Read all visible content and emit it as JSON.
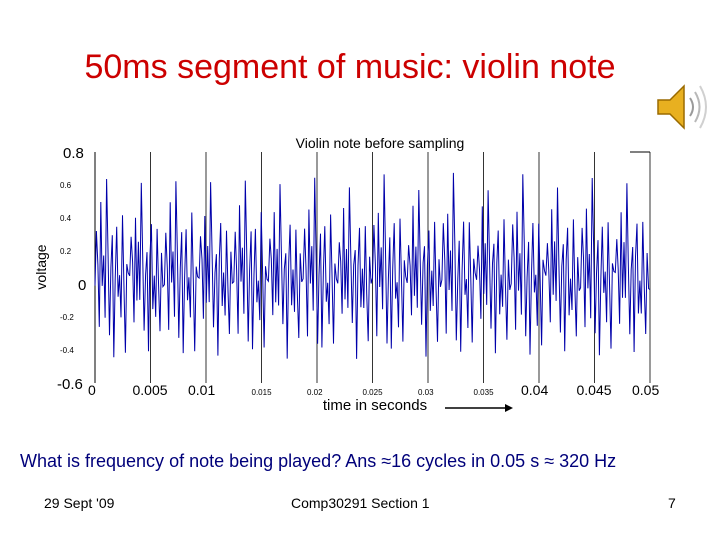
{
  "slide": {
    "title": "50ms segment of music: violin note",
    "question": "What is frequency of note being played? Ans ≈16 cycles in 0.05 s ≈ 320 Hz",
    "footer_left": "29 Sept '09",
    "footer_center": "Comp30291 Section 1",
    "footer_right": "7",
    "speaker_icon": "speaker-icon"
  },
  "colors": {
    "title": "#cc0000",
    "signal": "#0000aa",
    "question": "#00007a",
    "axis": "#000000"
  },
  "chart_data": {
    "type": "line",
    "title": "Violin note before sampling",
    "xlabel": "time in seconds",
    "ylabel": "voltage",
    "xlim": [
      0,
      0.05
    ],
    "ylim": [
      -0.6,
      0.8
    ],
    "xticks": [
      0,
      0.005,
      0.01,
      0.015,
      0.02,
      0.025,
      0.03,
      0.035,
      0.04,
      0.045,
      0.05
    ],
    "xtick_labels": [
      "0",
      "0.005",
      "0.01",
      "0.015",
      "0.02",
      "0.025",
      "0.03",
      "0.035",
      "0.04",
      "0.045",
      "0.05"
    ],
    "yticks": [
      -0.6,
      -0.4,
      -0.2,
      0,
      0.2,
      0.4,
      0.6,
      0.8
    ],
    "ytick_labels": [
      "-0.6",
      "-0.4",
      "-0.2",
      "0",
      "0.2",
      "0.4",
      "0.6",
      "0.8"
    ],
    "grid": "vertical",
    "series": [
      {
        "cycles": 16,
        "cycle_shape": [
          0.02,
          0.3,
          0.12,
          -0.25,
          0.45,
          -0.05,
          0.22,
          -0.15,
          0.62,
          0.18,
          -0.3,
          0.08,
          0.25,
          -0.42,
          0.1,
          0.35,
          -0.12,
          0.05,
          -0.2,
          0.38,
          0.0,
          -0.35,
          0.15,
          0.02
        ]
      }
    ]
  }
}
